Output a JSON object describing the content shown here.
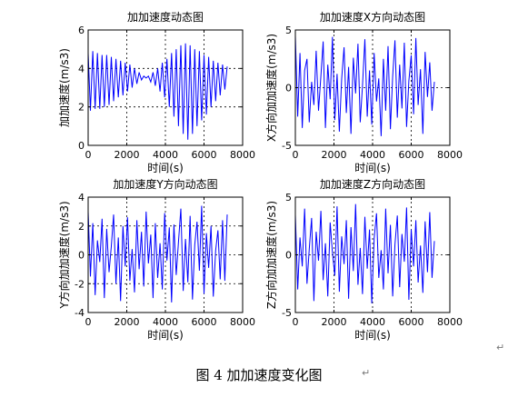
{
  "figure": {
    "caption": "图 4  加加速度变化图",
    "paragraph_mark": "↵"
  },
  "colors": {
    "series": "#0000ff",
    "axes": "#000000",
    "grid": "#000000",
    "background": "#ffffff"
  },
  "chart_data": [
    {
      "type": "line",
      "title": "加加速度动态图",
      "xlabel": "时间(s)",
      "ylabel": "加加速度(m/s3)",
      "xlim": [
        0,
        8000
      ],
      "ylim": [
        0,
        6
      ],
      "xticks": [
        0,
        2000,
        4000,
        6000,
        8000
      ],
      "yticks": [
        0,
        2,
        4,
        6
      ],
      "grid": true,
      "series": [
        {
          "x": [
            0,
            120,
            240,
            360,
            480,
            600,
            720,
            840,
            960,
            1080,
            1200,
            1320,
            1440,
            1560,
            1680,
            1800,
            1920,
            2040,
            2160,
            2280,
            2400,
            2520,
            2640,
            2760,
            2880,
            3000,
            3120,
            3240,
            3360,
            3480,
            3600,
            3720,
            3840,
            3960,
            4080,
            4200,
            4320,
            4440,
            4560,
            4680,
            4800,
            4920,
            5040,
            5160,
            5280,
            5400,
            5520,
            5640,
            5760,
            5880,
            6000,
            6120,
            6240,
            6360,
            6480,
            6600,
            6720,
            6840,
            6960,
            7080,
            7200
          ],
          "y": [
            4.8,
            1.8,
            4.9,
            1.9,
            4.8,
            1.9,
            4.7,
            2.0,
            4.7,
            2.1,
            4.6,
            2.3,
            4.5,
            2.5,
            4.4,
            2.6,
            4.3,
            2.8,
            4.2,
            3.0,
            4.0,
            3.2,
            3.8,
            3.4,
            3.6,
            3.5,
            3.6,
            3.3,
            3.8,
            3.1,
            4.0,
            2.8,
            4.3,
            2.5,
            4.5,
            2.0,
            4.8,
            1.5,
            5.0,
            1.0,
            5.2,
            0.6,
            5.3,
            0.3,
            5.2,
            0.6,
            5.0,
            1.0,
            4.9,
            1.3,
            4.7,
            1.6,
            4.6,
            2.0,
            4.4,
            2.3,
            4.3,
            2.6,
            4.2,
            2.9,
            4.1
          ]
        }
      ]
    },
    {
      "type": "line",
      "title": "加加速度X方向动态图",
      "xlabel": "时间(s)",
      "ylabel": "X方向加加速度(m/s3)",
      "xlim": [
        0,
        8000
      ],
      "ylim": [
        -5,
        5
      ],
      "xticks": [
        0,
        2000,
        4000,
        6000,
        8000
      ],
      "yticks": [
        -5,
        0,
        5
      ],
      "grid": true,
      "series": [
        {
          "x": [
            0,
            120,
            240,
            360,
            480,
            600,
            720,
            840,
            960,
            1080,
            1200,
            1320,
            1440,
            1560,
            1680,
            1800,
            1920,
            2040,
            2160,
            2280,
            2400,
            2520,
            2640,
            2760,
            2880,
            3000,
            3120,
            3240,
            3360,
            3480,
            3600,
            3720,
            3840,
            3960,
            4080,
            4200,
            4320,
            4440,
            4560,
            4680,
            4800,
            4920,
            5040,
            5160,
            5280,
            5400,
            5520,
            5640,
            5760,
            5880,
            6000,
            6120,
            6240,
            6360,
            6480,
            6600,
            6720,
            6840,
            6960,
            7080,
            7200
          ],
          "y": [
            4.5,
            -2.5,
            3.0,
            -3.5,
            1.5,
            2.5,
            -3.0,
            0.5,
            -1.5,
            3.2,
            -2.0,
            1.0,
            4.0,
            -3.5,
            2.0,
            -1.0,
            4.4,
            -2.8,
            1.2,
            -3.8,
            0.8,
            3.5,
            -2.2,
            1.8,
            -4.0,
            2.6,
            -0.5,
            3.8,
            -3.0,
            0.2,
            4.2,
            -2.5,
            1.5,
            -3.2,
            3.0,
            -1.2,
            0.8,
            -4.2,
            2.5,
            -2.0,
            3.6,
            -3.6,
            1.0,
            4.1,
            -2.6,
            2.0,
            -1.8,
            3.9,
            -3.4,
            0.6,
            2.8,
            -2.3,
            4.3,
            -1.5,
            1.6,
            -4.0,
            3.1,
            -0.8,
            2.2,
            -2.0,
            0.5
          ]
        }
      ]
    },
    {
      "type": "line",
      "title": "加加速度Y方向动态图",
      "xlabel": "时间(s)",
      "ylabel": "Y方向加加速度(m/s3)",
      "xlim": [
        0,
        8000
      ],
      "ylim": [
        -4,
        4
      ],
      "xticks": [
        0,
        2000,
        4000,
        6000,
        8000
      ],
      "yticks": [
        -4,
        -2,
        0,
        2,
        4
      ],
      "grid": true,
      "series": [
        {
          "x": [
            0,
            120,
            240,
            360,
            480,
            600,
            720,
            840,
            960,
            1080,
            1200,
            1320,
            1440,
            1560,
            1680,
            1800,
            1920,
            2040,
            2160,
            2280,
            2400,
            2520,
            2640,
            2760,
            2880,
            3000,
            3120,
            3240,
            3360,
            3480,
            3600,
            3720,
            3840,
            3960,
            4080,
            4200,
            4320,
            4440,
            4560,
            4680,
            4800,
            4920,
            5040,
            5160,
            5280,
            5400,
            5520,
            5640,
            5760,
            5880,
            6000,
            6120,
            6240,
            6360,
            6480,
            6600,
            6720,
            6840,
            6960,
            7080,
            7200
          ],
          "y": [
            3.0,
            -1.5,
            2.2,
            -2.8,
            1.0,
            -0.5,
            2.5,
            -3.0,
            1.8,
            -1.2,
            0.6,
            2.8,
            -2.0,
            1.2,
            -3.2,
            2.0,
            -0.8,
            2.6,
            -1.8,
            0.4,
            -2.6,
            2.4,
            -1.0,
            1.6,
            -2.2,
            3.0,
            -0.6,
            1.4,
            -3.0,
            2.2,
            -1.6,
            0.8,
            -2.4,
            2.9,
            -0.4,
            1.9,
            -3.3,
            2.1,
            -1.4,
            0.9,
            3.2,
            -2.5,
            1.1,
            -1.9,
            2.7,
            -3.1,
            0.7,
            2.3,
            -1.1,
            3.4,
            -2.7,
            1.5,
            -0.9,
            2.0,
            -2.9,
            0.3,
            1.7,
            -1.7,
            2.4,
            -1.8,
            2.8
          ]
        }
      ]
    },
    {
      "type": "line",
      "title": "加加速度Z方向动态图",
      "xlabel": "时间(s)",
      "ylabel": "Z方向加加速度(m/s3)",
      "xlim": [
        0,
        8000
      ],
      "ylim": [
        -5,
        5
      ],
      "xticks": [
        0,
        2000,
        4000,
        6000,
        8000
      ],
      "yticks": [
        -5,
        0,
        5
      ],
      "grid": true,
      "series": [
        {
          "x": [
            0,
            120,
            240,
            360,
            480,
            600,
            720,
            840,
            960,
            1080,
            1200,
            1320,
            1440,
            1560,
            1680,
            1800,
            1920,
            2040,
            2160,
            2280,
            2400,
            2520,
            2640,
            2760,
            2880,
            3000,
            3120,
            3240,
            3360,
            3480,
            3600,
            3720,
            3840,
            3960,
            4080,
            4200,
            4320,
            4440,
            4560,
            4680,
            4800,
            4920,
            5040,
            5160,
            5280,
            5400,
            5520,
            5640,
            5760,
            5880,
            6000,
            6120,
            6240,
            6360,
            6480,
            6600,
            6720,
            6840,
            6960,
            7080,
            7200
          ],
          "y": [
            3.5,
            -3.0,
            1.5,
            -1.0,
            4.0,
            -2.5,
            0.5,
            3.2,
            -4.0,
            2.0,
            -0.5,
            3.8,
            -2.2,
            1.0,
            -3.6,
            2.8,
            0.2,
            -1.8,
            4.2,
            -3.2,
            1.6,
            -0.8,
            3.0,
            -3.8,
            2.4,
            -1.4,
            4.4,
            -2.6,
            0.6,
            -3.4,
            3.3,
            -1.2,
            2.2,
            -4.2,
            1.4,
            3.6,
            -2.0,
            0.4,
            -3.0,
            4.0,
            -1.6,
            2.6,
            -3.6,
            0.9,
            3.4,
            -2.8,
            1.8,
            -0.6,
            4.1,
            -3.9,
            2.2,
            -1.0,
            3.0,
            -2.4,
            0.8,
            -3.3,
            2.9,
            -1.5,
            3.7,
            -2.0,
            1.2
          ]
        }
      ]
    }
  ]
}
